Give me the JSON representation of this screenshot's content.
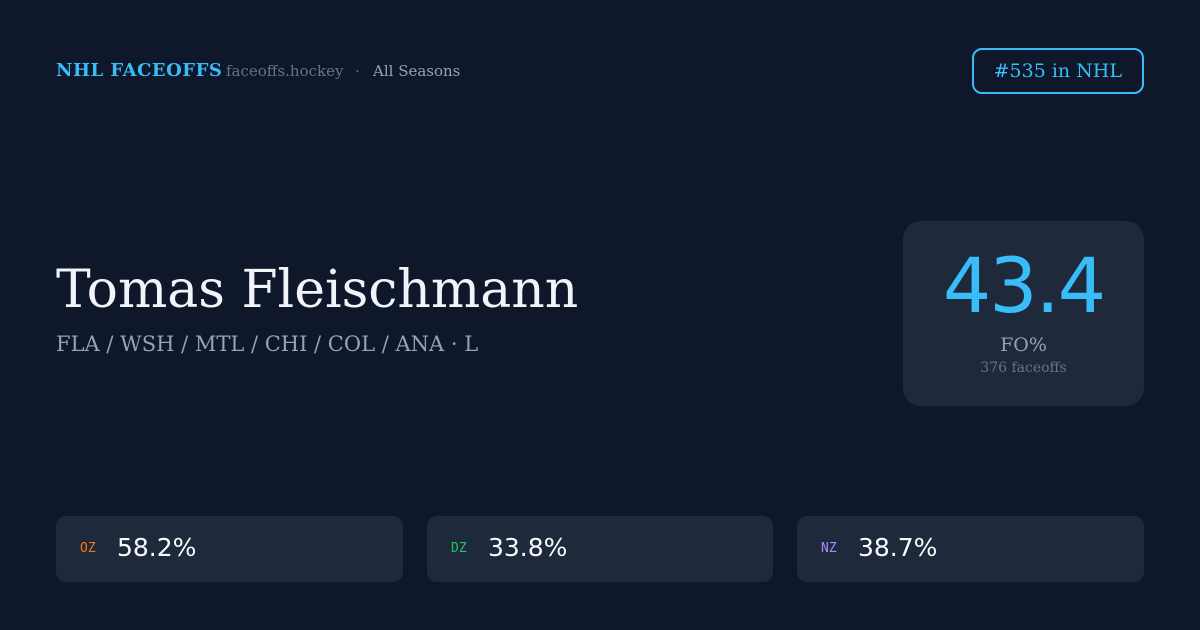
{
  "header": {
    "brand": "NHL FACEOFFS",
    "site": "faceoffs.hockey",
    "separator": "·",
    "season": "All Seasons",
    "rank": "#535 in NHL"
  },
  "player": {
    "name": "Tomas Fleischmann",
    "teams": "FLA / WSH / MTL / CHI / COL / ANA · L"
  },
  "stat": {
    "value": "43.4",
    "label": "FO%",
    "faceoffs": "376 faceoffs"
  },
  "zones": [
    {
      "label": "OZ",
      "value": "58.2%",
      "color": "#f97316"
    },
    {
      "label": "DZ",
      "value": "33.8%",
      "color": "#22c55e"
    },
    {
      "label": "NZ",
      "value": "38.7%",
      "color": "#a78bfa"
    }
  ]
}
